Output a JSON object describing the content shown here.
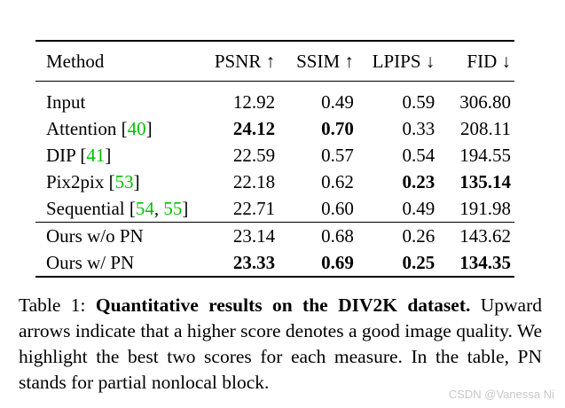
{
  "table": {
    "headers": {
      "method": "Method",
      "psnr": "PSNR ↑",
      "ssim": "SSIM ↑",
      "lpips": "LPIPS ↓",
      "fid": "FID ↓"
    },
    "group1": [
      {
        "name": "Input",
        "refs": "",
        "psnr": "12.92",
        "ssim": "0.49",
        "lpips": "0.59",
        "fid": "306.80"
      },
      {
        "name": "Attention",
        "refs": "40",
        "psnr": "24.12",
        "ssim": "0.70",
        "lpips": "0.33",
        "fid": "208.11"
      },
      {
        "name": "DIP",
        "refs": "41",
        "psnr": "22.59",
        "ssim": "0.57",
        "lpips": "0.54",
        "fid": "194.55"
      },
      {
        "name": "Pix2pix",
        "refs": "53",
        "psnr": "22.18",
        "ssim": "0.62",
        "lpips": "0.23",
        "fid": "135.14"
      },
      {
        "name": "Sequential",
        "refs": "54, 55",
        "refs_a": "54",
        "refs_b": "55",
        "psnr": "22.71",
        "ssim": "0.60",
        "lpips": "0.49",
        "fid": "191.98"
      }
    ],
    "group2": [
      {
        "name": "Ours w/o PN",
        "psnr": "23.14",
        "ssim": "0.68",
        "lpips": "0.26",
        "fid": "143.62"
      },
      {
        "name": "Ours w/ PN",
        "psnr": "23.33",
        "ssim": "0.69",
        "lpips": "0.25",
        "fid": "134.35"
      }
    ]
  },
  "caption": {
    "label": "Table 1:",
    "title": "Quantitative results on the DIV2K dataset.",
    "body": "Upward arrows indicate that a higher score denotes a good image quality. We highlight the best two scores for each measure. In the table, PN stands for partial nonlocal block."
  },
  "colors": {
    "reference_link": "#00c000",
    "watermark": "#c8c8c8"
  },
  "watermark": "CSDN @Vanessa Ni"
}
